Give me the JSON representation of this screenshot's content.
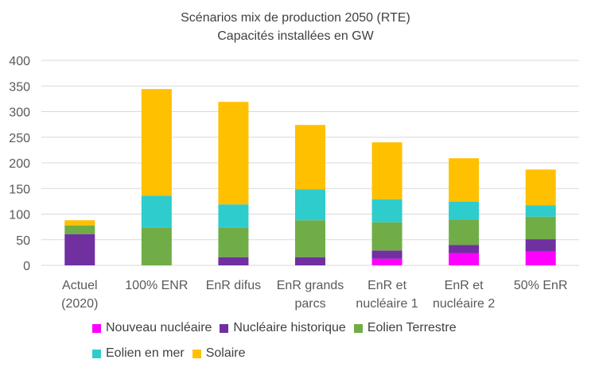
{
  "chart_data": {
    "type": "bar",
    "stacked": true,
    "title": "Scénarios mix de production 2050 (RTE)",
    "subtitle": "Capacités installées en GW",
    "categories": [
      [
        "Actuel",
        "(2020)"
      ],
      [
        "100% ENR"
      ],
      [
        "EnR difus"
      ],
      [
        "EnR grands",
        "parcs"
      ],
      [
        "EnR et",
        "nucléaire 1"
      ],
      [
        "EnR et",
        "nucléaire 2"
      ],
      [
        "50% EnR"
      ]
    ],
    "ylim": [
      0,
      400
    ],
    "yticks": [
      0,
      50,
      100,
      150,
      200,
      250,
      300,
      350,
      400
    ],
    "grid": true,
    "legend_position": "bottom",
    "series": [
      {
        "name": "Nouveau nucléaire",
        "color": "#ff00ff",
        "values": [
          0,
          0,
          0,
          0,
          13,
          24,
          27
        ]
      },
      {
        "name": "Nucléaire historique",
        "color": "#7030a0",
        "values": [
          61,
          0,
          16,
          16,
          16,
          16,
          24
        ]
      },
      {
        "name": "Eolien Terrestre",
        "color": "#70ad47",
        "values": [
          17,
          74,
          58,
          72,
          55,
          49,
          44
        ]
      },
      {
        "name": "Eolien en mer",
        "color": "#2ecccc",
        "values": [
          0,
          62,
          45,
          60,
          45,
          35,
          22
        ]
      },
      {
        "name": "Solaire",
        "color": "#ffc000",
        "values": [
          10,
          208,
          200,
          126,
          111,
          85,
          70
        ]
      }
    ]
  }
}
